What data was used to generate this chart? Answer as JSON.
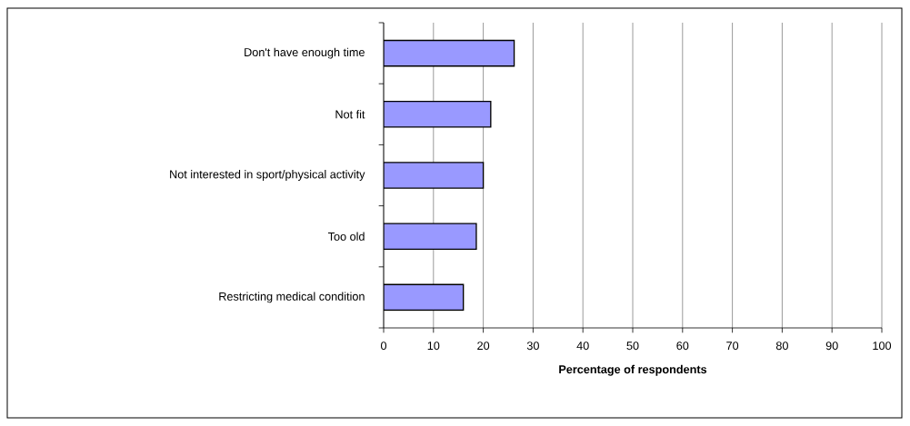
{
  "chart_data": {
    "type": "bar",
    "orientation": "horizontal",
    "categories": [
      "Don't have enough time",
      "Not fit",
      "Not interested in sport/physical activity",
      "Too old",
      "Restricting medical condition"
    ],
    "values": [
      26.2,
      21.5,
      20.0,
      18.6,
      16.0
    ],
    "color": "#9999ff",
    "xlabel": "Percentage of respondents",
    "xlim": [
      0,
      100
    ],
    "xticks": [
      0,
      10,
      20,
      30,
      40,
      50,
      60,
      70,
      80,
      90,
      100
    ],
    "grid": "x"
  }
}
